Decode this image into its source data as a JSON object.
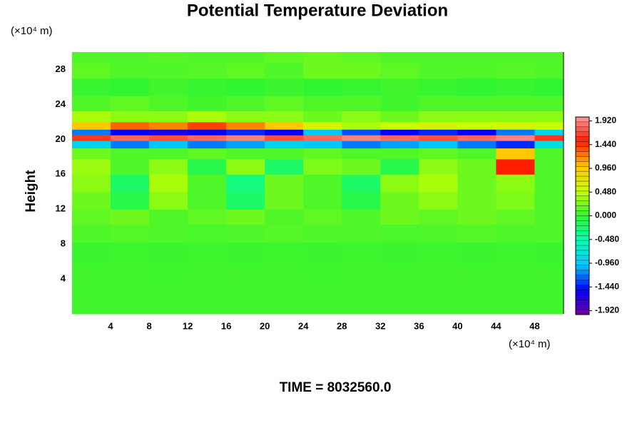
{
  "chart_data": {
    "type": "heatmap",
    "title": "Potential Temperature Deviation",
    "y_unit_label": "(×10⁴ m)",
    "x_unit_label": "(×10⁴ m)",
    "ylabel": "Height",
    "footer": "TIME = 8032560.0",
    "xlim": [
      0,
      51
    ],
    "ylim": [
      0,
      30
    ],
    "xticks": [
      4,
      8,
      12,
      16,
      20,
      24,
      28,
      32,
      36,
      40,
      44,
      48
    ],
    "yticks": [
      4,
      8,
      12,
      16,
      20,
      24,
      28
    ],
    "zlim": [
      -2,
      2
    ],
    "zticks": [
      {
        "value": 1.92,
        "label": "1.920"
      },
      {
        "value": 1.44,
        "label": "1.440"
      },
      {
        "value": 0.96,
        "label": "0.960"
      },
      {
        "value": 0.48,
        "label": "0.480"
      },
      {
        "value": 0,
        "label": "0.000"
      },
      {
        "value": -0.48,
        "label": "-0.480"
      },
      {
        "value": -0.96,
        "label": "-0.960"
      },
      {
        "value": -1.44,
        "label": "-1.440"
      },
      {
        "value": -1.92,
        "label": "-1.920"
      }
    ],
    "colormap": [
      "#7000a0",
      "#0000ff",
      "#00c8ff",
      "#00ffb4",
      "#32f532",
      "#c8ff00",
      "#ffc800",
      "#ff1e00",
      "#ff9a9a"
    ],
    "x": [
      2,
      6,
      10,
      14,
      18,
      22,
      26,
      30,
      34,
      38,
      42,
      46,
      50
    ],
    "y": [
      1,
      4,
      7,
      9.5,
      11,
      13,
      15,
      17,
      18.5,
      19.5,
      20.2,
      20.8,
      21.5,
      22.5,
      24,
      26,
      28,
      29.5
    ],
    "z": [
      [
        0.05,
        0.05,
        0.05,
        0.05,
        0.05,
        0.05,
        0.05,
        0.05,
        0.05,
        0.05,
        0.05,
        0.05,
        0.05
      ],
      [
        0.05,
        0.05,
        0.04,
        0.05,
        0.05,
        0.05,
        0.04,
        0.05,
        0.05,
        0.05,
        0.05,
        0.05,
        0.05
      ],
      [
        0.03,
        0.04,
        0.03,
        0.04,
        0.03,
        0.04,
        0.03,
        0.04,
        0.03,
        0.04,
        0.03,
        0.04,
        0.03
      ],
      [
        0.1,
        0.12,
        0.1,
        0.08,
        0.1,
        0.12,
        0.1,
        0.1,
        0.08,
        0.1,
        0.12,
        0.1,
        0.1
      ],
      [
        0.15,
        0.2,
        0.1,
        0.15,
        0.2,
        0.1,
        0.15,
        0.1,
        0.2,
        0.15,
        0.2,
        0.15,
        0.1
      ],
      [
        0.2,
        -0.1,
        0.3,
        0.1,
        -0.2,
        0.2,
        0.1,
        -0.1,
        0.2,
        0.3,
        0.2,
        0.25,
        0.1
      ],
      [
        0.3,
        -0.2,
        0.4,
        0.1,
        -0.3,
        0.2,
        0.1,
        -0.2,
        0.3,
        0.4,
        0.2,
        0.3,
        0.1
      ],
      [
        0.35,
        0.1,
        0.3,
        -0.1,
        0.3,
        -0.2,
        0.25,
        0.2,
        -0.1,
        0.3,
        0.2,
        1.5,
        0.1
      ],
      [
        0.2,
        0.1,
        0.1,
        0.15,
        0.1,
        0.1,
        0.15,
        0.1,
        0.1,
        0.15,
        0.1,
        1.0,
        0.1
      ],
      [
        -0.9,
        -1.2,
        -1.0,
        -1.2,
        -1.1,
        -0.9,
        -1.0,
        -1.2,
        -1.1,
        -1.0,
        -1.2,
        -1.4,
        -0.8
      ],
      [
        1.6,
        1.8,
        1.7,
        1.8,
        1.9,
        1.7,
        1.8,
        1.9,
        1.8,
        1.7,
        1.8,
        1.9,
        1.6
      ],
      [
        -1.2,
        -1.5,
        -1.6,
        -1.5,
        -1.4,
        -1.5,
        -1.0,
        -1.3,
        -1.5,
        -1.4,
        -1.5,
        -1.2,
        -0.9
      ],
      [
        1.0,
        1.3,
        1.2,
        1.4,
        1.2,
        1.0,
        0.6,
        0.4,
        0.5,
        0.6,
        0.5,
        0.6,
        0.5
      ],
      [
        0.4,
        0.3,
        0.3,
        0.4,
        0.3,
        0.3,
        0.2,
        0.3,
        0.2,
        0.3,
        0.3,
        0.3,
        0.3
      ],
      [
        0.1,
        0.15,
        0.1,
        0.05,
        0.1,
        0.15,
        0.1,
        0.1,
        0.05,
        0.1,
        0.1,
        0.1,
        0.1
      ],
      [
        0.02,
        0.0,
        0.05,
        0.02,
        0.0,
        0.03,
        0.0,
        0.02,
        0.05,
        0.02,
        0.0,
        0.02,
        0.0
      ],
      [
        0.15,
        0.1,
        0.1,
        0.12,
        0.15,
        0.1,
        0.2,
        0.2,
        0.15,
        0.1,
        0.1,
        0.12,
        0.1
      ],
      [
        0.1,
        0.1,
        0.12,
        0.1,
        0.1,
        0.15,
        0.2,
        0.15,
        0.1,
        0.1,
        0.1,
        0.1,
        0.1
      ]
    ]
  }
}
